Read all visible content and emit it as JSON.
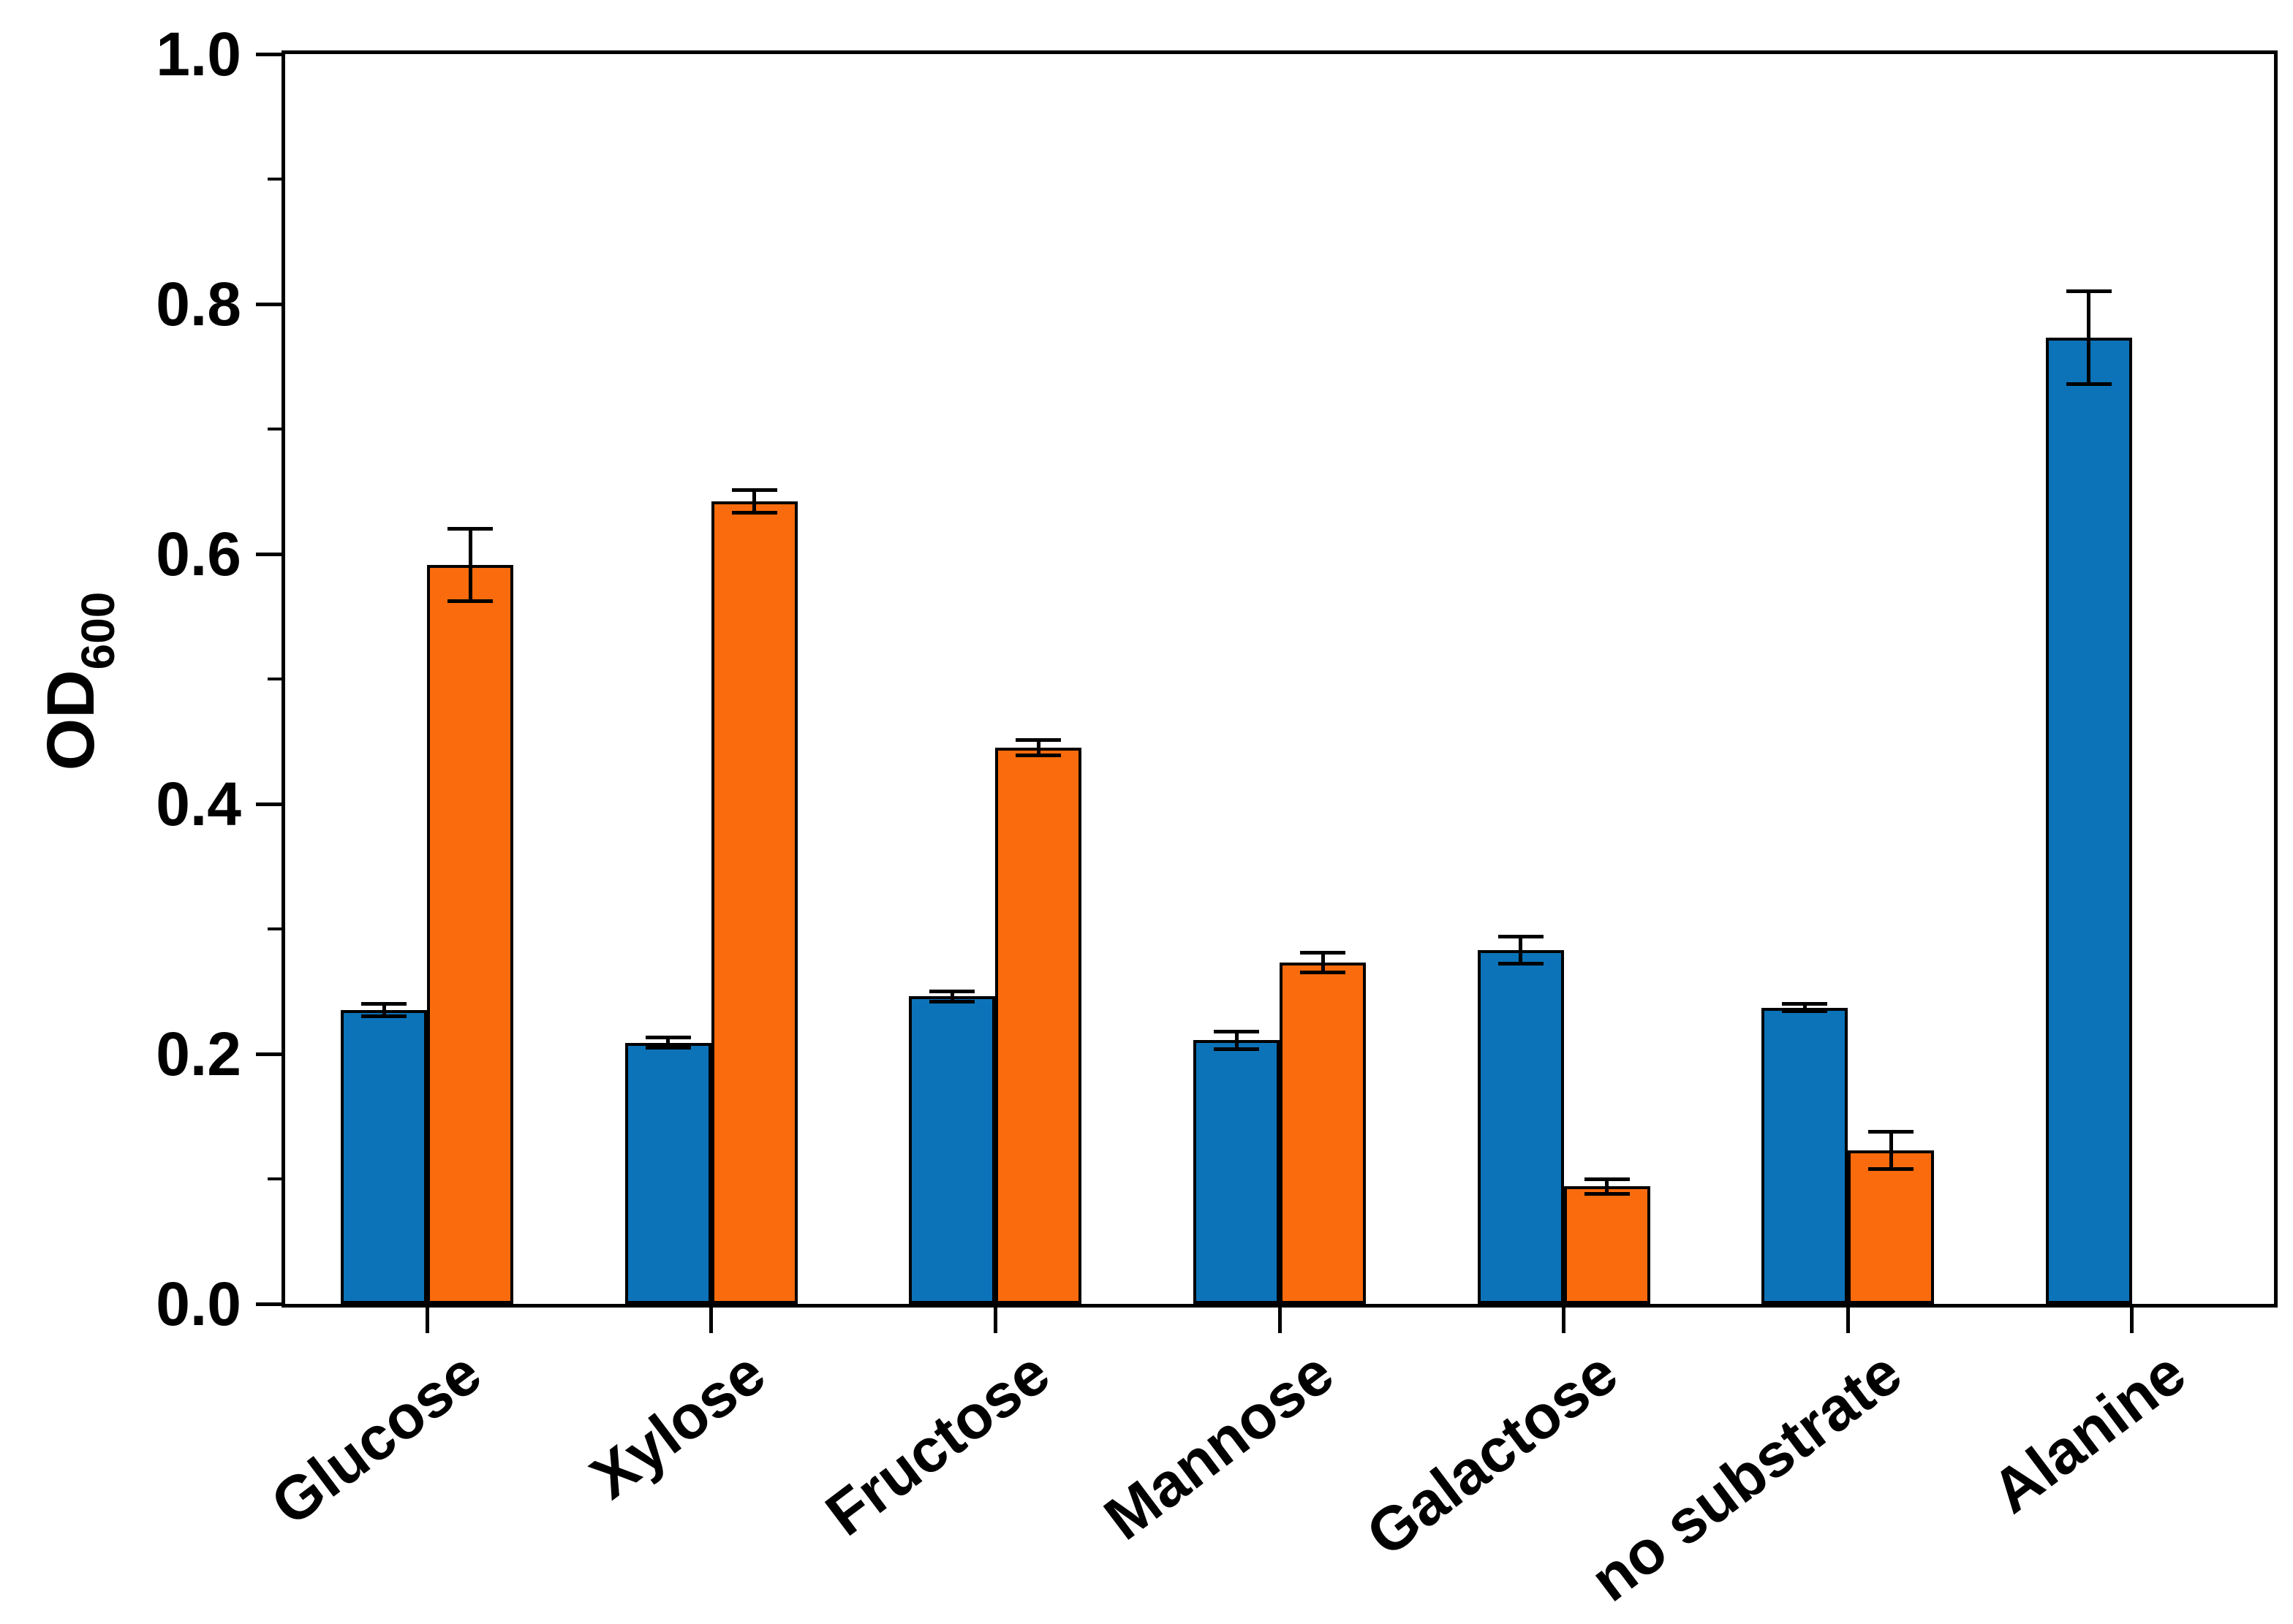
{
  "chart_data": {
    "type": "bar",
    "title": "",
    "ylabel": "OD",
    "ylabel_subscript": "600",
    "xlabel": "",
    "categories": [
      "Glucose",
      "Xylose",
      "Fructose",
      "Mannose",
      "Galactose",
      "no substrate",
      "Alanine"
    ],
    "series": [
      {
        "name": "blue-series",
        "color": "#0c73b8",
        "values": [
          0.235,
          0.209,
          0.246,
          0.211,
          0.283,
          0.237,
          0.773
        ],
        "errors": [
          0.005,
          0.004,
          0.004,
          0.007,
          0.011,
          0.003,
          0.037
        ]
      },
      {
        "name": "orange-series",
        "color": "#fa6b0d",
        "values": [
          0.591,
          0.642,
          0.445,
          0.273,
          0.094,
          0.123,
          null
        ],
        "errors": [
          0.029,
          0.009,
          0.006,
          0.008,
          0.006,
          0.015,
          null
        ]
      }
    ],
    "ylim": [
      0.0,
      1.0
    ],
    "ytick_step": 0.2,
    "yminor_step": 0.1,
    "ytick_labels": [
      "0.0",
      "0.2",
      "0.4",
      "0.6",
      "0.8",
      "1.0"
    ],
    "grid": false,
    "legend": null,
    "frame": "box",
    "bar_border_color": "#000000",
    "error_bar_color": "#000000",
    "x_label_rotation_deg": 37
  }
}
